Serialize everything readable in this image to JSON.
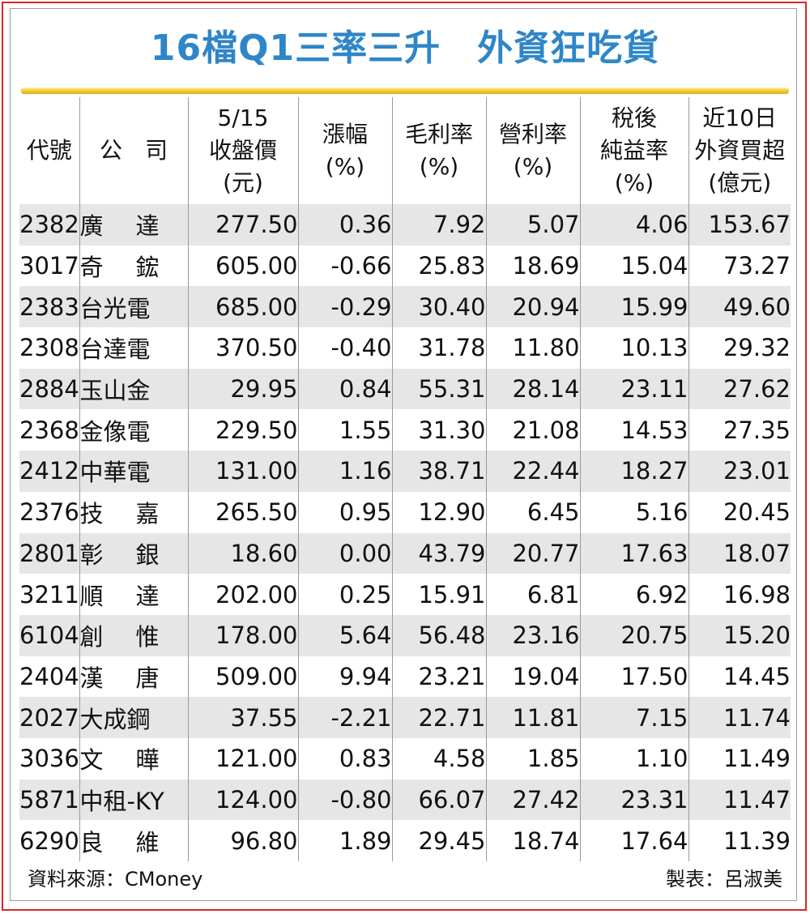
{
  "title": "16檔Q1三率三升　外資狂吃貨",
  "headers": {
    "code": "代號",
    "company": "公　司",
    "price": [
      "5/15",
      "收盤價",
      "(元)"
    ],
    "change": [
      "漲幅",
      "(%)"
    ],
    "gross": [
      "毛利率",
      "(%)"
    ],
    "operating": [
      "營利率",
      "(%)"
    ],
    "net": [
      "稅後",
      "純益率",
      "(%)"
    ],
    "foreign": [
      "近10日",
      "外資買超",
      "(億元)"
    ]
  },
  "rows": [
    {
      "code": "2382",
      "company": "廣達",
      "price": "277.50",
      "change": "0.36",
      "gross": "7.92",
      "operating": "5.07",
      "net": "4.06",
      "foreign": "153.67"
    },
    {
      "code": "3017",
      "company": "奇鋐",
      "price": "605.00",
      "change": "-0.66",
      "gross": "25.83",
      "operating": "18.69",
      "net": "15.04",
      "foreign": "73.27"
    },
    {
      "code": "2383",
      "company": "台光電",
      "price": "685.00",
      "change": "-0.29",
      "gross": "30.40",
      "operating": "20.94",
      "net": "15.99",
      "foreign": "49.60"
    },
    {
      "code": "2308",
      "company": "台達電",
      "price": "370.50",
      "change": "-0.40",
      "gross": "31.78",
      "operating": "11.80",
      "net": "10.13",
      "foreign": "29.32"
    },
    {
      "code": "2884",
      "company": "玉山金",
      "price": "29.95",
      "change": "0.84",
      "gross": "55.31",
      "operating": "28.14",
      "net": "23.11",
      "foreign": "27.62"
    },
    {
      "code": "2368",
      "company": "金像電",
      "price": "229.50",
      "change": "1.55",
      "gross": "31.30",
      "operating": "21.08",
      "net": "14.53",
      "foreign": "27.35"
    },
    {
      "code": "2412",
      "company": "中華電",
      "price": "131.00",
      "change": "1.16",
      "gross": "38.71",
      "operating": "22.44",
      "net": "18.27",
      "foreign": "23.01"
    },
    {
      "code": "2376",
      "company": "技嘉",
      "price": "265.50",
      "change": "0.95",
      "gross": "12.90",
      "operating": "6.45",
      "net": "5.16",
      "foreign": "20.45"
    },
    {
      "code": "2801",
      "company": "彰銀",
      "price": "18.60",
      "change": "0.00",
      "gross": "43.79",
      "operating": "20.77",
      "net": "17.63",
      "foreign": "18.07"
    },
    {
      "code": "3211",
      "company": "順達",
      "price": "202.00",
      "change": "0.25",
      "gross": "15.91",
      "operating": "6.81",
      "net": "6.92",
      "foreign": "16.98"
    },
    {
      "code": "6104",
      "company": "創惟",
      "price": "178.00",
      "change": "5.64",
      "gross": "56.48",
      "operating": "23.16",
      "net": "20.75",
      "foreign": "15.20"
    },
    {
      "code": "2404",
      "company": "漢唐",
      "price": "509.00",
      "change": "9.94",
      "gross": "23.21",
      "operating": "19.04",
      "net": "17.50",
      "foreign": "14.45"
    },
    {
      "code": "2027",
      "company": "大成鋼",
      "price": "37.55",
      "change": "-2.21",
      "gross": "22.71",
      "operating": "11.81",
      "net": "7.15",
      "foreign": "11.74"
    },
    {
      "code": "3036",
      "company": "文曄",
      "price": "121.00",
      "change": "0.83",
      "gross": "4.58",
      "operating": "1.85",
      "net": "1.10",
      "foreign": "11.49"
    },
    {
      "code": "5871",
      "company": "中租-KY",
      "price": "124.00",
      "change": "-0.80",
      "gross": "66.07",
      "operating": "27.42",
      "net": "23.31",
      "foreign": "11.47"
    },
    {
      "code": "6290",
      "company": "良維",
      "price": "96.80",
      "change": "1.89",
      "gross": "29.45",
      "operating": "18.74",
      "net": "17.64",
      "foreign": "11.39"
    }
  ],
  "footer": {
    "source": "資料來源：CMoney",
    "credit": "製表：呂淑美"
  },
  "colors": {
    "title": "#2e86c8",
    "frame": "#d9242b",
    "rule": "#e2ad12",
    "stripe": "#e6e6e6"
  }
}
